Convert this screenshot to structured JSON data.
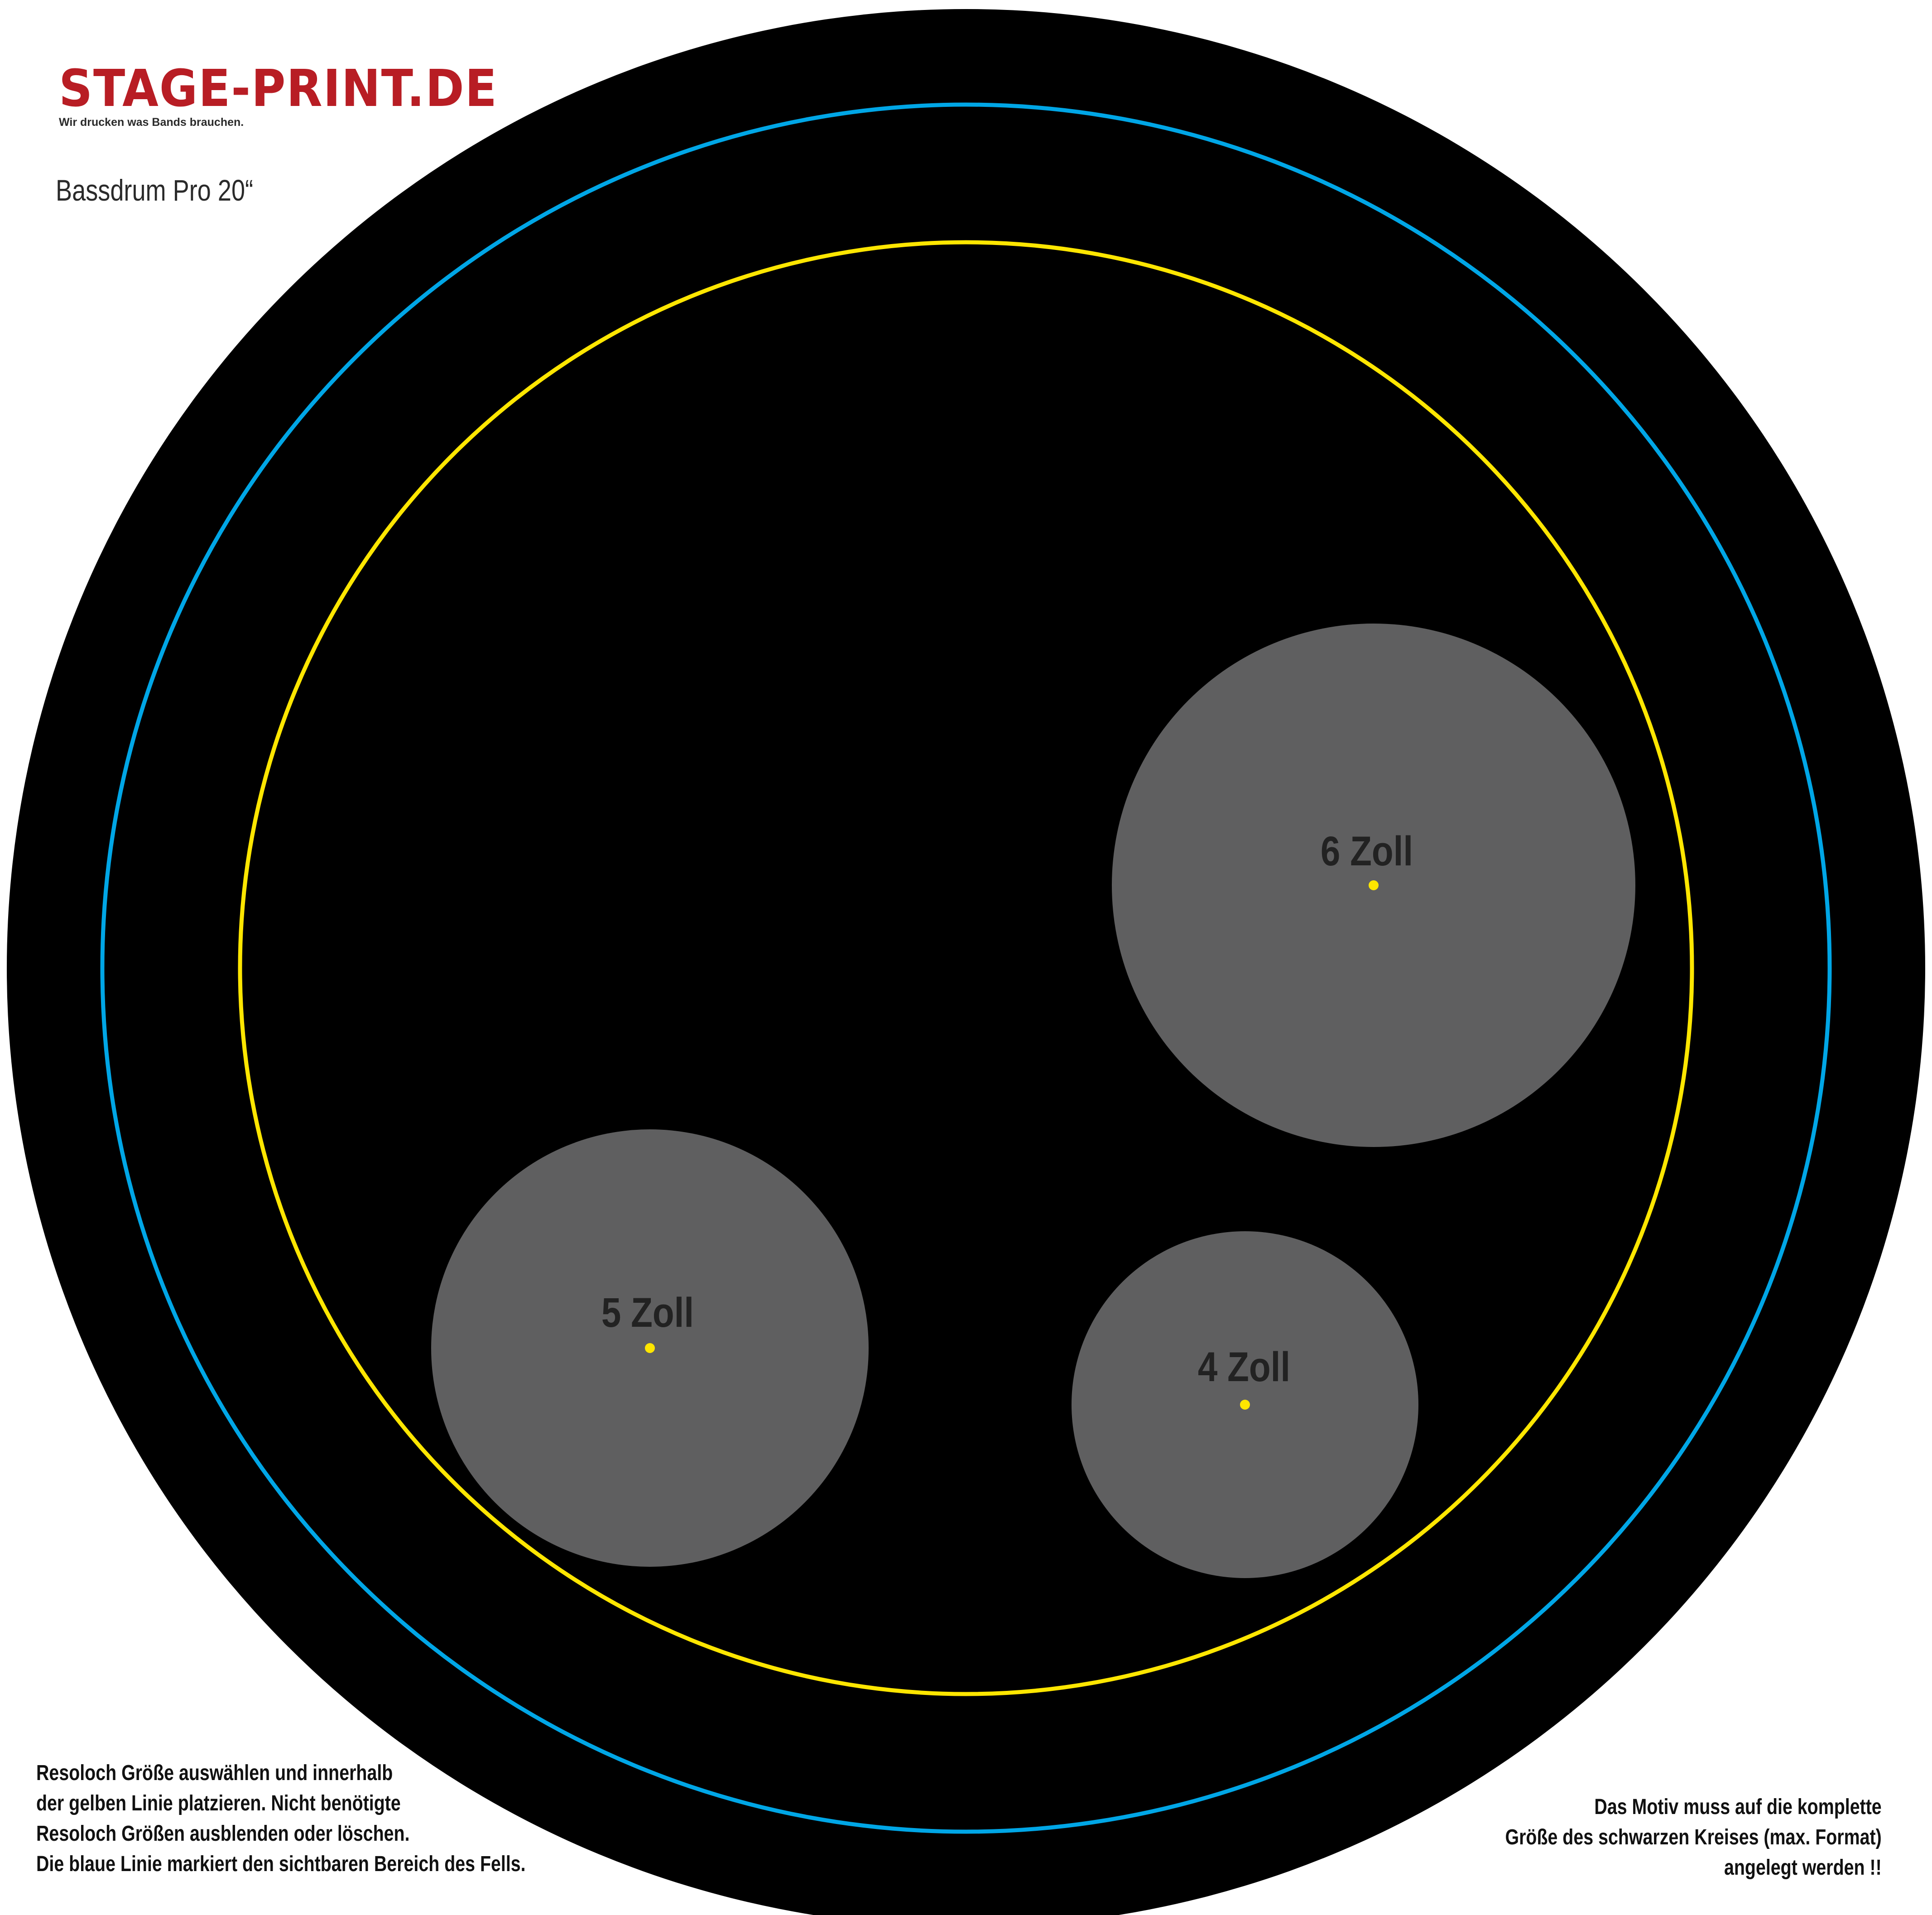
{
  "brand": {
    "name": "STAGE-PRINT.DE",
    "tagline": "Wir drucken was Bands brauchen."
  },
  "template_title": "Bassdrum Pro 20“",
  "colors": {
    "background": "#ffffff",
    "drumhead": "#000000",
    "visible_area_line": "#00a6e6",
    "placement_line": "#ffe600",
    "hole": "#5f5f60",
    "hole_center": "#ffe600",
    "brand": "#b81d24"
  },
  "holes": [
    {
      "label": "6 Zoll"
    },
    {
      "label": "5 Zoll"
    },
    {
      "label": "4 Zoll"
    }
  ],
  "instructions_left": [
    "Resoloch Größe auswählen und innerhalb",
    "der gelben Linie platzieren. Nicht benötigte",
    "Resoloch Größen ausblenden oder löschen.",
    "Die blaue Linie markiert den sichtbaren Bereich des Fells."
  ],
  "instructions_right": [
    "Das Motiv muss auf die komplette",
    "Größe des schwarzen Kreises (max. Format)",
    "angelegt werden !!"
  ]
}
